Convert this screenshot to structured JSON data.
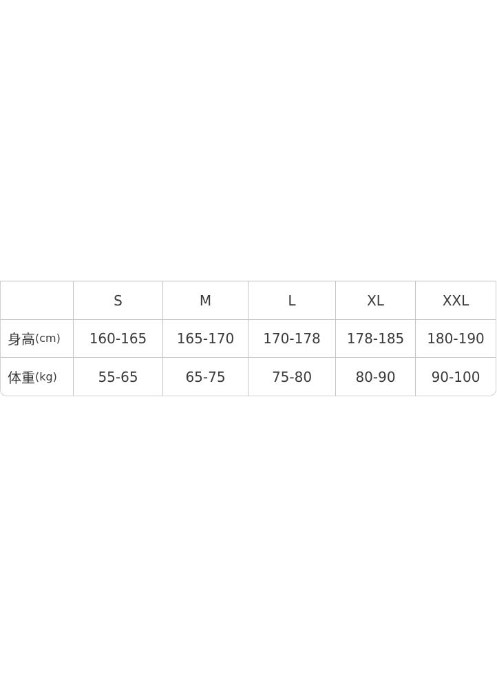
{
  "table": {
    "headers": [
      "",
      "S",
      "M",
      "L",
      "XL",
      "XXL"
    ],
    "rows": [
      {
        "label": "身高",
        "unit": "(cm)",
        "values": [
          "160-165",
          "165-170",
          "170-178",
          "178-185",
          "180-190"
        ]
      },
      {
        "label": "体重",
        "unit": "(kg)",
        "values": [
          "55-65",
          "65-75",
          "75-80",
          "80-90",
          "90-100"
        ]
      }
    ]
  }
}
